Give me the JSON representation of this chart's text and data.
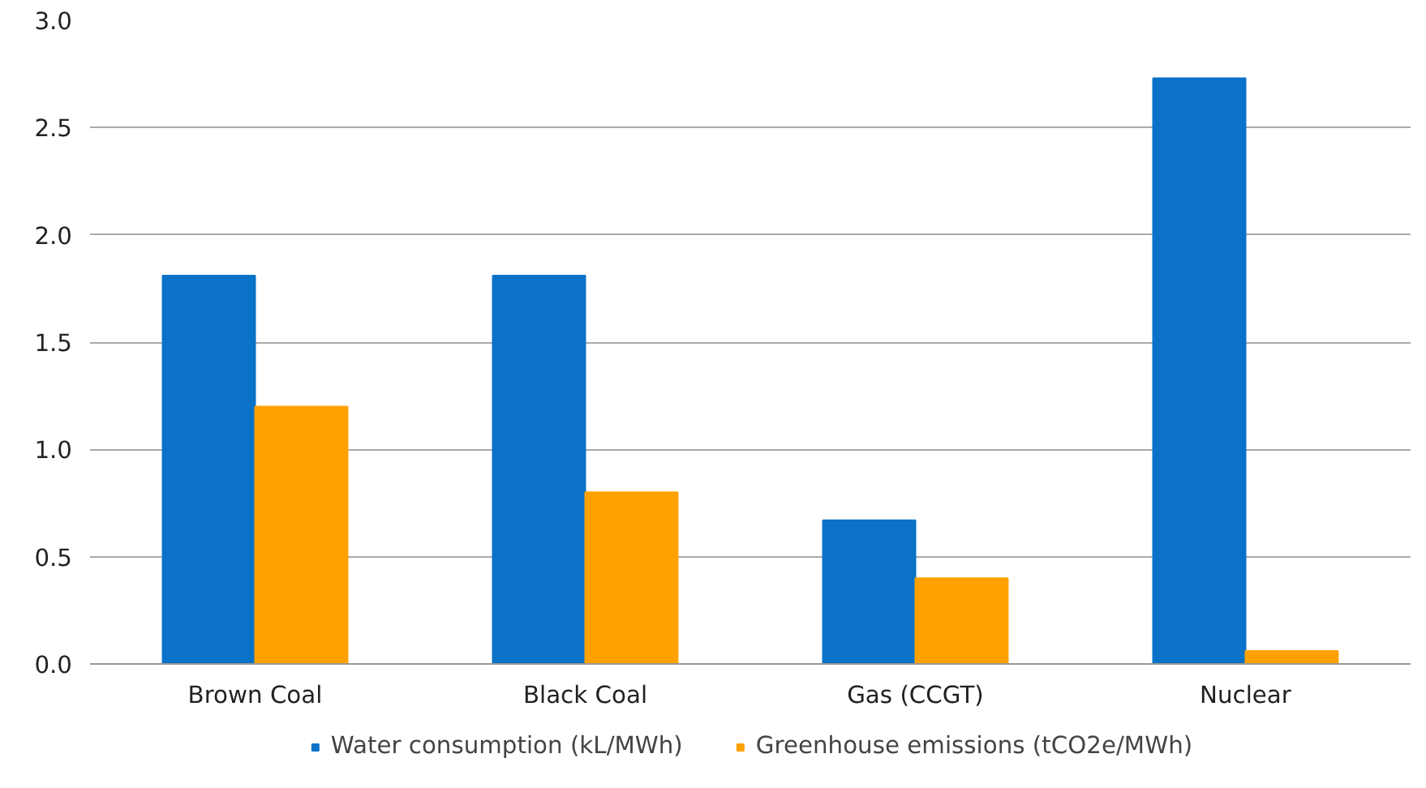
{
  "chart_data": {
    "type": "bar",
    "categories": [
      "Brown Coal",
      "Black Coal",
      "Gas (CCGT)",
      "Nuclear"
    ],
    "series": [
      {
        "name": "Water consumption (kL/MWh)",
        "color": "#0a72c8",
        "values": [
          1.81,
          1.81,
          0.67,
          2.73
        ]
      },
      {
        "name": "Greenhouse emissions (tCO2e/MWh)",
        "color": "#ffa200",
        "values": [
          1.2,
          0.8,
          0.4,
          0.06
        ]
      }
    ],
    "ylim": [
      0,
      3
    ],
    "yticks": [
      {
        "value": 0,
        "label": "0.0"
      },
      {
        "value": 0.5,
        "label": "0.5"
      },
      {
        "value": 1,
        "label": "1.0"
      },
      {
        "value": 1.5,
        "label": "1.5"
      },
      {
        "value": 2,
        "label": "2.0"
      },
      {
        "value": 2.5,
        "label": "2.5"
      },
      {
        "value": 3,
        "label": "3.0"
      }
    ],
    "grid": "y",
    "legend": "bottom"
  }
}
